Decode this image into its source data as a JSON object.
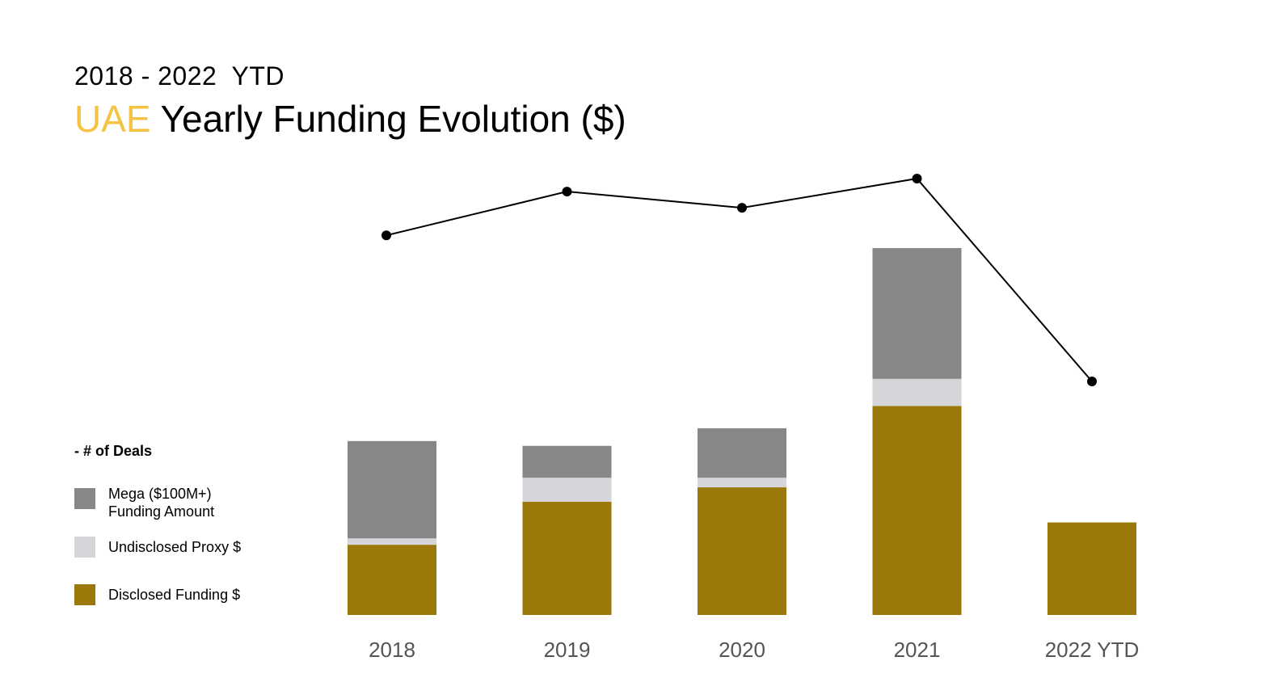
{
  "header": {
    "subtitle": "2018 - 2022  YTD",
    "title_accent": "UAE",
    "title_rest": " Yearly Funding Evolution ($)"
  },
  "legend": {
    "heading": "- # of Deals",
    "items": [
      {
        "label": "Mega ($100M+)\nFunding Amount",
        "color": "#878787"
      },
      {
        "label": "Undisclosed Proxy $",
        "color": "#d6d5da"
      },
      {
        "label": "Disclosed Funding $",
        "color": "#9a780a"
      }
    ]
  },
  "colors": {
    "accent": "#f5c242",
    "disclosed": "#9a780a",
    "undisclosed": "#d6d5da",
    "mega": "#878787",
    "line": "#000000"
  },
  "chart_data": {
    "type": "bar",
    "stacked": true,
    "categories": [
      "2018",
      "2019",
      "2020",
      "2021",
      "2022 YTD"
    ],
    "series": [
      {
        "name": "Disclosed Funding $",
        "values": [
          88,
          142,
          160,
          262,
          116
        ]
      },
      {
        "name": "Undisclosed Proxy $",
        "values": [
          8,
          30,
          12,
          34,
          0
        ]
      },
      {
        "name": "Mega ($100M+) Funding Amount",
        "values": [
          122,
          40,
          62,
          164,
          0
        ]
      }
    ],
    "line_series": {
      "name": "# of Deals",
      "values": [
        118,
        145,
        135,
        153,
        28
      ]
    },
    "ylim": [
      0,
      460
    ],
    "grid": false,
    "legend_position": "left"
  }
}
